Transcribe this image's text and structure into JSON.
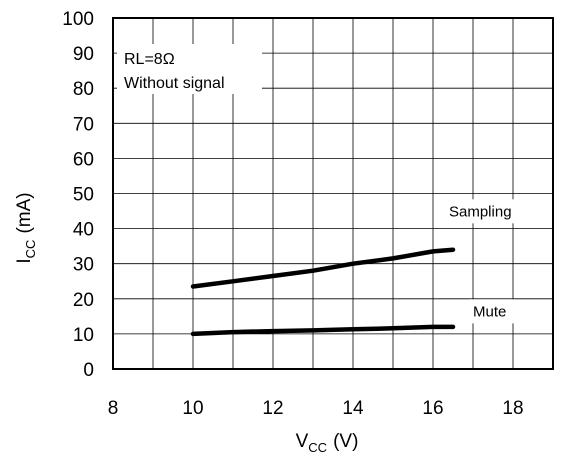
{
  "chart_data": {
    "type": "line",
    "title": "",
    "xlabel": {
      "main": "V",
      "sub": "CC",
      "unit": "(V)"
    },
    "ylabel": {
      "main": "I",
      "sub": "CC",
      "unit": "(mA)"
    },
    "xlim": [
      8,
      19
    ],
    "ylim": [
      0,
      100
    ],
    "xticks": [
      8,
      10,
      12,
      14,
      16,
      18
    ],
    "yticks": [
      0,
      10,
      20,
      30,
      40,
      50,
      60,
      70,
      80,
      90,
      100
    ],
    "xtick_labels": [
      "8",
      "10",
      "12",
      "14",
      "16",
      "18"
    ],
    "ytick_labels": [
      "0",
      "10",
      "20",
      "30",
      "40",
      "50",
      "60",
      "70",
      "80",
      "90",
      "100"
    ],
    "grid": true,
    "series": [
      {
        "name": "Sampling",
        "x": [
          10,
          11,
          12,
          13,
          14,
          15,
          16,
          16.5
        ],
        "y": [
          23.5,
          25,
          26.5,
          28,
          30,
          31.5,
          33.5,
          34
        ]
      },
      {
        "name": "Mute",
        "x": [
          10,
          11,
          12,
          13,
          14,
          15,
          16,
          16.5
        ],
        "y": [
          10,
          10.5,
          10.8,
          11,
          11.3,
          11.6,
          12,
          12
        ]
      }
    ],
    "annotation": {
      "line1": "RL=8Ω",
      "line2": "Without signal"
    },
    "colors": {
      "line": "#000000",
      "grid": "#000000",
      "background": "#ffffff"
    }
  }
}
